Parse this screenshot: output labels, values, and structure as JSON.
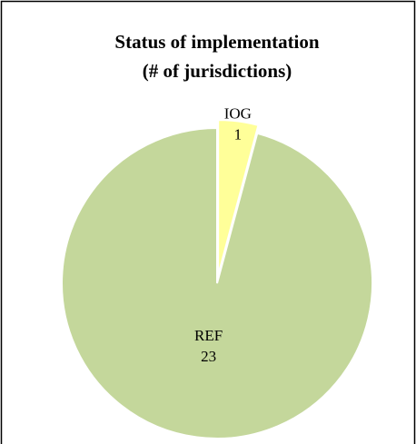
{
  "chart_data": {
    "type": "pie",
    "title": [
      "Status of implementation",
      "(# of jurisdictions)"
    ],
    "categories": [
      "IOG",
      "REF"
    ],
    "values": [
      1,
      23
    ],
    "colors": [
      "#ffff99",
      "#c4d79b"
    ],
    "explode": [
      true,
      false
    ]
  }
}
